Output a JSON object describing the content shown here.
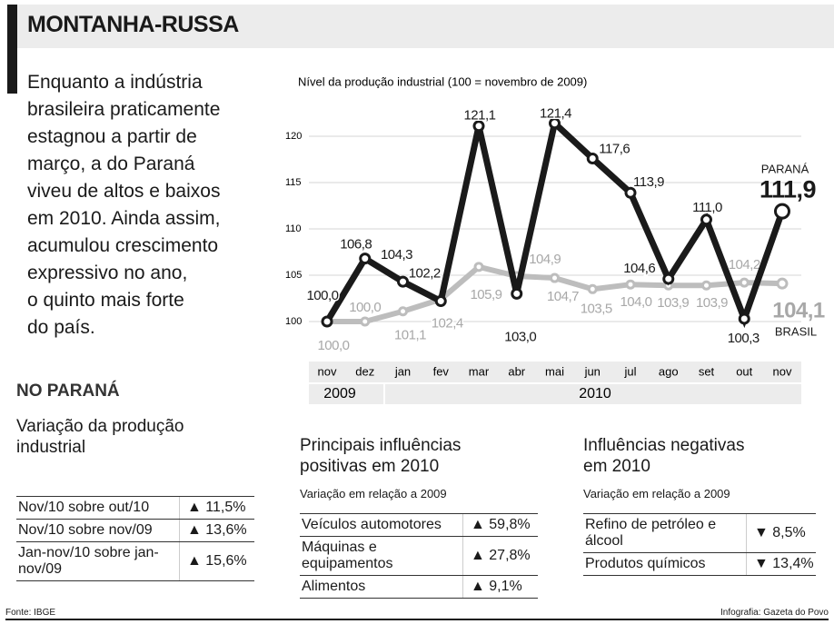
{
  "header": {
    "title": "MONTANHA-RUSSA"
  },
  "intro": [
    "Enquanto a indústria",
    "brasileira praticamente",
    "estagnou a partir de",
    "março, a do Paraná",
    "viveu de altos e baixos",
    "em 2010. Ainda assim,",
    "acumulou crescimento",
    "expressivo no ano,",
    "o quinto mais forte",
    "do país."
  ],
  "chart_data": {
    "type": "line",
    "title": "Nível da produção industrial (100 = novembro de 2009)",
    "categories": [
      "nov",
      "dez",
      "jan",
      "fev",
      "mar",
      "abr",
      "mai",
      "jun",
      "jul",
      "ago",
      "set",
      "out",
      "nov"
    ],
    "year_labels": [
      "2009",
      "2010"
    ],
    "ylim": [
      98,
      122
    ],
    "yticks": [
      100,
      105,
      110,
      115,
      120
    ],
    "grid": true,
    "series": [
      {
        "name": "PARANÁ",
        "color": "#1a1a1a",
        "values": [
          100.0,
          106.8,
          104.3,
          102.2,
          121.1,
          103.0,
          121.4,
          117.6,
          113.9,
          104.6,
          111.0,
          100.3,
          111.9
        ],
        "value_labels": [
          "100,0",
          "106,8",
          "104,3",
          "102,2",
          "121,1",
          "103,0",
          "121,4",
          "117,6",
          "113,9",
          "104,6",
          "111,0",
          "100,3",
          "111,9"
        ]
      },
      {
        "name": "BRASIL",
        "color": "#bdbdbd",
        "values": [
          100.0,
          100.0,
          101.1,
          102.4,
          105.9,
          104.9,
          104.7,
          103.5,
          104.0,
          103.9,
          103.9,
          104.2,
          104.1
        ],
        "value_labels": [
          "100,0",
          "100,0",
          "101,1",
          "102,4",
          "105,9",
          "104,9",
          "104,7",
          "103,5",
          "104,0",
          "103,9",
          "103,9",
          "104,2",
          "104,1"
        ]
      }
    ]
  },
  "left": {
    "heading": "NO PARANÁ",
    "title": "Variação da produção industrial",
    "rows": [
      [
        "Nov/10 sobre out/10",
        "▲ 11,5%"
      ],
      [
        "Nov/10 sobre nov/09",
        "▲ 13,6%"
      ],
      [
        "Jan-nov/10 sobre jan-nov/09",
        "▲ 15,6%"
      ]
    ]
  },
  "middle": {
    "title": "Principais influências positivas em 2010",
    "subtitle": "Variação em relação a 2009",
    "rows": [
      [
        "Veículos automotores",
        "▲ 59,8%"
      ],
      [
        "Máquinas e equipamentos",
        "▲ 27,8%"
      ],
      [
        "Alimentos",
        "▲ 9,1%"
      ]
    ]
  },
  "right": {
    "title": "Influências negativas em 2010",
    "subtitle": "Variação em relação a 2009",
    "rows": [
      [
        "Refino de petróleo e álcool",
        "▼ 8,5%"
      ],
      [
        "Produtos químicos",
        "▼ 13,4%"
      ]
    ]
  },
  "footer": {
    "source": "Fonte: IBGE",
    "credit": "Infografia: Gazeta do Povo"
  }
}
